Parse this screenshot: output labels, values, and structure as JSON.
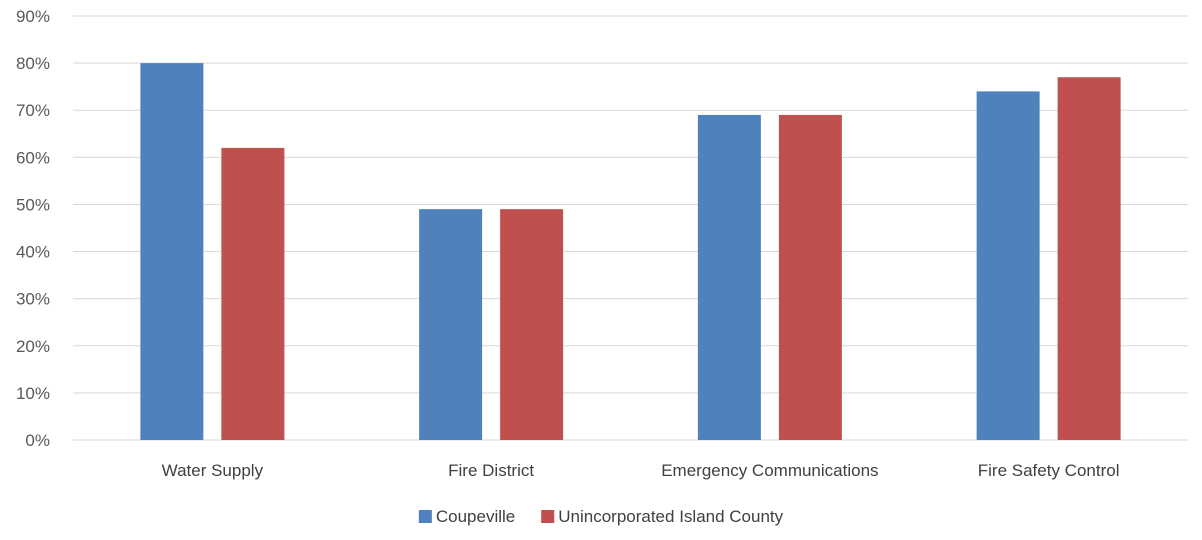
{
  "chart_data": {
    "type": "bar",
    "title": "",
    "xlabel": "",
    "ylabel": "",
    "categories": [
      "Water Supply",
      "Fire District",
      "Emergency Communications",
      "Fire Safety Control"
    ],
    "series": [
      {
        "name": "Coupeville",
        "color": "#4f81bd",
        "values": [
          80,
          49,
          69,
          74
        ]
      },
      {
        "name": "Unincorporated Island County",
        "color": "#c0504d",
        "values": [
          62,
          49,
          69,
          77
        ]
      }
    ],
    "ylim": [
      0,
      90
    ],
    "y_ticks": [
      "0%",
      "10%",
      "20%",
      "30%",
      "40%",
      "50%",
      "60%",
      "70%",
      "80%",
      "90%"
    ],
    "grid": true,
    "legend_position": "bottom"
  }
}
